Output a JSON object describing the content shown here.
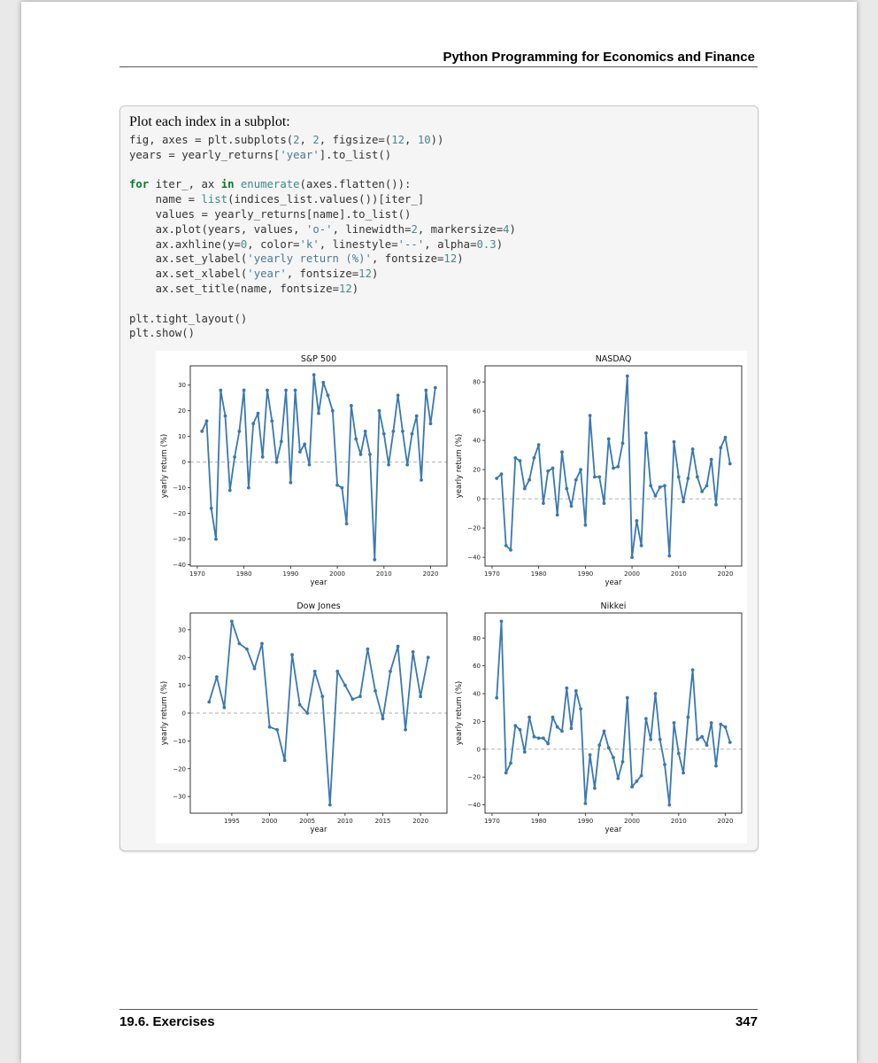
{
  "header": {
    "title": "Python Programming for Economics and Finance"
  },
  "cell": {
    "caption": "Plot each index in a subplot:",
    "code_lines": [
      "fig, axes = plt.subplots(2, 2, figsize=(12, 10))",
      "years = yearly_returns['year'].to_list()",
      "",
      "for iter_, ax in enumerate(axes.flatten()):",
      "    name = list(indices_list.values())[iter_]",
      "    values = yearly_returns[name].to_list()",
      "    ax.plot(years, values, 'o-', linewidth=2, markersize=4)",
      "    ax.axhline(y=0, color='k', linestyle='--', alpha=0.3)",
      "    ax.set_ylabel('yearly return (%)', fontsize=12)",
      "    ax.set_xlabel('year', fontsize=12)",
      "    ax.set_title(name, fontsize=12)",
      "",
      "plt.tight_layout()",
      "plt.show()"
    ]
  },
  "chart_data": [
    {
      "type": "line",
      "title": "S&P 500",
      "xlabel": "year",
      "ylabel": "yearly return (%)",
      "color": "#3a78b1",
      "xlim": [
        1968.5,
        2023.5
      ],
      "ylim": [
        -40.5,
        37.5
      ],
      "xticks": [
        1970,
        1980,
        1990,
        2000,
        2010,
        2020
      ],
      "yticks": [
        -40,
        -30,
        -20,
        -10,
        0,
        10,
        20,
        30
      ],
      "x": [
        1971,
        1972,
        1973,
        1974,
        1975,
        1976,
        1977,
        1978,
        1979,
        1980,
        1981,
        1982,
        1983,
        1984,
        1985,
        1986,
        1987,
        1988,
        1989,
        1990,
        1991,
        1992,
        1993,
        1994,
        1995,
        1996,
        1997,
        1998,
        1999,
        2000,
        2001,
        2002,
        2003,
        2004,
        2005,
        2006,
        2007,
        2008,
        2009,
        2010,
        2011,
        2012,
        2013,
        2014,
        2015,
        2016,
        2017,
        2018,
        2019,
        2020,
        2021
      ],
      "values": [
        12,
        16,
        -18,
        -30,
        28,
        18,
        -11,
        2,
        12,
        28,
        -10,
        15,
        19,
        2,
        28,
        16,
        0,
        8,
        28,
        -8,
        28,
        4,
        7,
        -1,
        34,
        19,
        31,
        26,
        20,
        -9,
        -10,
        -24,
        22,
        9,
        3,
        12,
        3,
        -38,
        20,
        11,
        -1,
        12,
        26,
        12,
        -1,
        11,
        18,
        -7,
        28,
        15,
        29
      ]
    },
    {
      "type": "line",
      "title": "NASDAQ",
      "xlabel": "year",
      "ylabel": "yearly return (%)",
      "color": "#3a78b1",
      "xlim": [
        1968.5,
        2023.5
      ],
      "ylim": [
        -46,
        91
      ],
      "xticks": [
        1970,
        1980,
        1990,
        2000,
        2010,
        2020
      ],
      "yticks": [
        -40,
        -20,
        0,
        20,
        40,
        60,
        80
      ],
      "x": [
        1971,
        1972,
        1973,
        1974,
        1975,
        1976,
        1977,
        1978,
        1979,
        1980,
        1981,
        1982,
        1983,
        1984,
        1985,
        1986,
        1987,
        1988,
        1989,
        1990,
        1991,
        1992,
        1993,
        1994,
        1995,
        1996,
        1997,
        1998,
        1999,
        2000,
        2001,
        2002,
        2003,
        2004,
        2005,
        2006,
        2007,
        2008,
        2009,
        2010,
        2011,
        2012,
        2013,
        2014,
        2015,
        2016,
        2017,
        2018,
        2019,
        2020,
        2021
      ],
      "values": [
        14,
        17,
        -32,
        -35,
        28,
        26,
        7,
        13,
        28,
        37,
        -3,
        19,
        21,
        -11,
        32,
        7,
        -5,
        13,
        20,
        -18,
        57,
        15,
        15,
        -3,
        41,
        21,
        22,
        38,
        84,
        -40,
        -15,
        -32,
        45,
        9,
        2,
        8,
        9,
        -39,
        39,
        15,
        -2,
        14,
        34,
        15,
        5,
        9,
        27,
        -4,
        35,
        42,
        24
      ]
    },
    {
      "type": "line",
      "title": "Dow Jones",
      "xlabel": "year",
      "ylabel": "yearly return (%)",
      "color": "#3a78b1",
      "xlim": [
        1989.5,
        2023.5
      ],
      "ylim": [
        -36,
        36
      ],
      "xticks": [
        1995,
        2000,
        2005,
        2010,
        2015,
        2020
      ],
      "yticks": [
        -30,
        -20,
        -10,
        0,
        10,
        20,
        30
      ],
      "x": [
        1992,
        1993,
        1994,
        1995,
        1996,
        1997,
        1998,
        1999,
        2000,
        2001,
        2002,
        2003,
        2004,
        2005,
        2006,
        2007,
        2008,
        2009,
        2010,
        2011,
        2012,
        2013,
        2014,
        2015,
        2016,
        2017,
        2018,
        2019,
        2020,
        2021
      ],
      "values": [
        4,
        13,
        2,
        33,
        25,
        23,
        16,
        25,
        -5,
        -6,
        -17,
        21,
        3,
        0,
        15,
        6,
        -33,
        15,
        10,
        5,
        6,
        23,
        8,
        -2,
        15,
        24,
        -6,
        22,
        6,
        20
      ]
    },
    {
      "type": "line",
      "title": "Nikkei",
      "xlabel": "year",
      "ylabel": "yearly return (%)",
      "color": "#3a78b1",
      "xlim": [
        1968.5,
        2023.5
      ],
      "ylim": [
        -46,
        98
      ],
      "xticks": [
        1970,
        1980,
        1990,
        2000,
        2010,
        2020
      ],
      "yticks": [
        -40,
        -20,
        0,
        20,
        40,
        60,
        80
      ],
      "x": [
        1971,
        1972,
        1973,
        1974,
        1975,
        1976,
        1977,
        1978,
        1979,
        1980,
        1981,
        1982,
        1983,
        1984,
        1985,
        1986,
        1987,
        1988,
        1989,
        1990,
        1991,
        1992,
        1993,
        1994,
        1995,
        1996,
        1997,
        1998,
        1999,
        2000,
        2001,
        2002,
        2003,
        2004,
        2005,
        2006,
        2007,
        2008,
        2009,
        2010,
        2011,
        2012,
        2013,
        2014,
        2015,
        2016,
        2017,
        2018,
        2019,
        2020,
        2021
      ],
      "values": [
        37,
        92,
        -17,
        -10,
        17,
        14,
        -2,
        23,
        9,
        8,
        8,
        4,
        23,
        16,
        13,
        44,
        15,
        42,
        29,
        -39,
        -4,
        -28,
        3,
        13,
        1,
        -6,
        -21,
        -9,
        37,
        -27,
        -23,
        -19,
        22,
        7,
        40,
        7,
        -11,
        -40,
        19,
        -3,
        -17,
        23,
        57,
        7,
        9,
        3,
        19,
        -12,
        18,
        16,
        5
      ]
    }
  ],
  "footer": {
    "section": "19.6.  Exercises",
    "page": "347"
  }
}
